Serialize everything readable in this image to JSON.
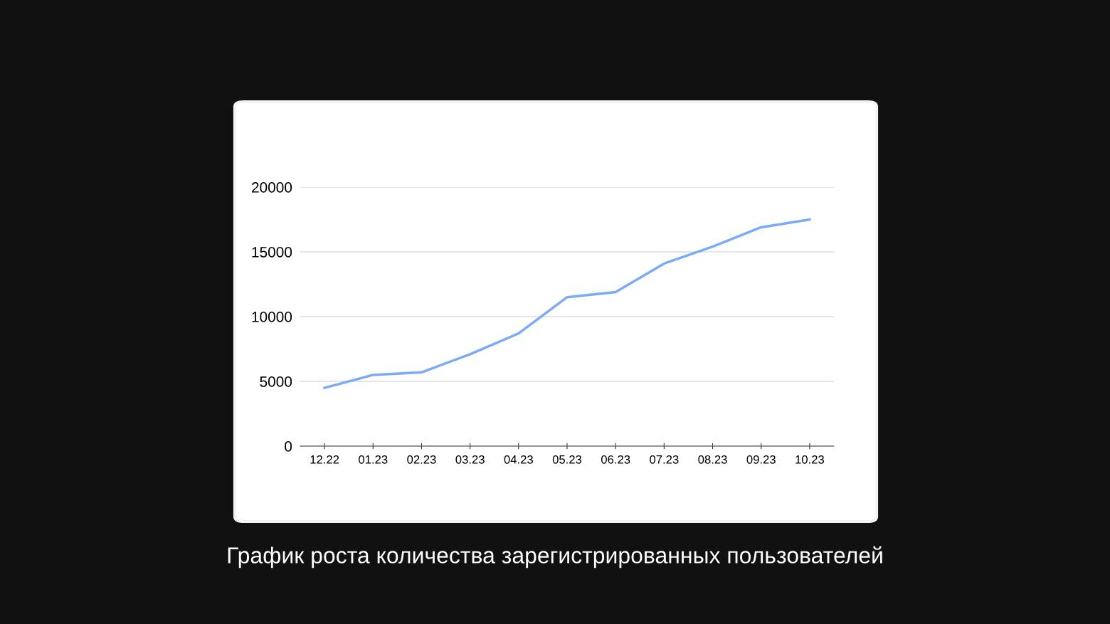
{
  "chart_data": {
    "type": "line",
    "title": "График роста количества зарегистрированных пользователей",
    "categories": [
      "12.22",
      "01.23",
      "02.23",
      "03.23",
      "04.23",
      "05.23",
      "06.23",
      "07.23",
      "08.23",
      "09.23",
      "10.23"
    ],
    "series": [
      {
        "color": "#7baaf7",
        "values": [
          4500,
          5500,
          5700,
          7100,
          8700,
          11500,
          11900,
          14100,
          15400,
          16900,
          17500
        ]
      }
    ],
    "ylim": [
      0,
      20000
    ],
    "yticks": [
      0,
      5000,
      10000,
      15000,
      20000
    ],
    "grid": "y",
    "marker": "none",
    "line_style": "solid"
  }
}
